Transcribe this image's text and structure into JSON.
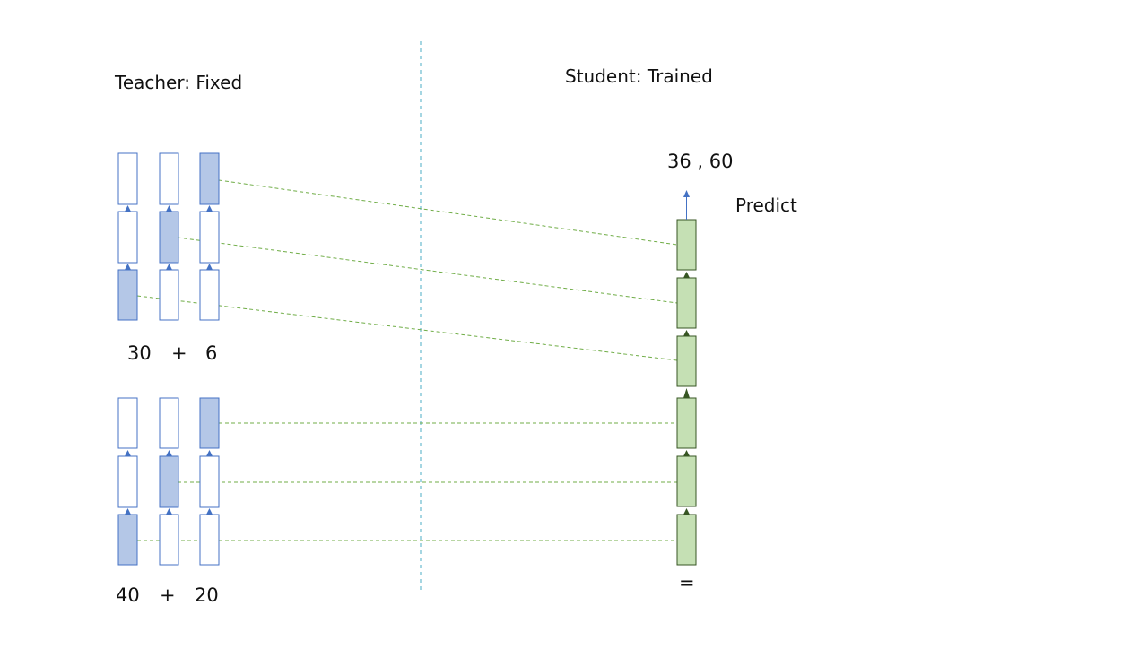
{
  "teacher": {
    "title": "Teacher: Fixed",
    "expr_top": {
      "a": "30",
      "op": "+",
      "b": "6"
    },
    "expr_bottom": {
      "a": "40",
      "op": "+",
      "b": "20"
    }
  },
  "student": {
    "title": "Student: Trained",
    "output": "36 , 60",
    "predict_label": "Predict",
    "equals": "="
  },
  "colors": {
    "teacher_fill": "#b4c7e7",
    "teacher_stroke": "#4472c4",
    "student_fill": "#c5e0b4",
    "student_stroke": "#375623",
    "mapping_line": "#70ad47",
    "divider": "#4bacc6"
  }
}
